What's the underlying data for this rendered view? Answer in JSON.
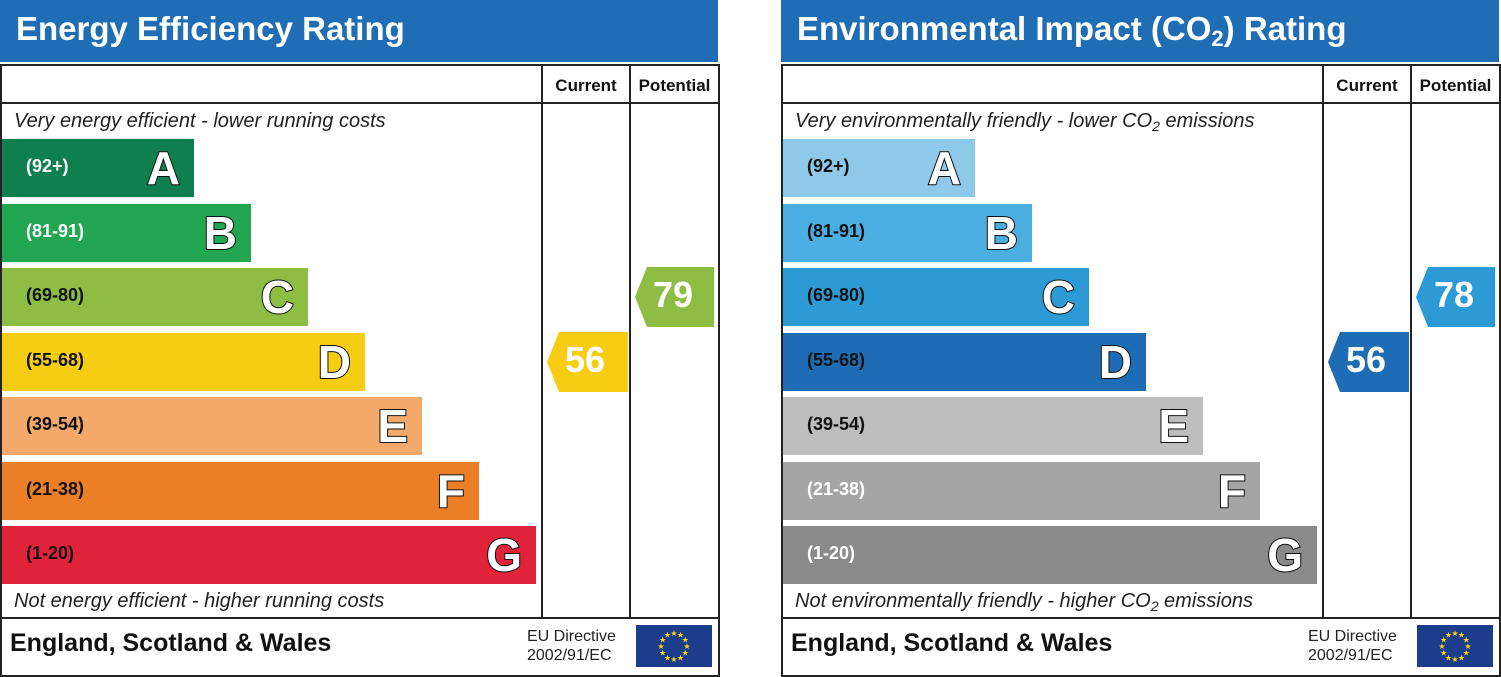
{
  "chart_data": [
    {
      "type": "bar",
      "title": "Energy Efficiency Rating",
      "columns": [
        "Current",
        "Potential"
      ],
      "top_note": "Very energy efficient - lower running costs",
      "bottom_note": "Not energy efficient - higher running costs",
      "bands": [
        {
          "letter": "A",
          "range": "(92+)",
          "color": "#0f7f4d",
          "text_color": "#ffffff"
        },
        {
          "letter": "B",
          "range": "(81-91)",
          "color": "#22a652",
          "text_color": "#ffffff"
        },
        {
          "letter": "C",
          "range": "(69-80)",
          "color": "#8dbe43",
          "text_color": "#111111"
        },
        {
          "letter": "D",
          "range": "(55-68)",
          "color": "#f6cd13",
          "text_color": "#111111"
        },
        {
          "letter": "E",
          "range": "(39-54)",
          "color": "#f3a96a",
          "text_color": "#111111"
        },
        {
          "letter": "F",
          "range": "(21-38)",
          "color": "#ec7f25",
          "text_color": "#111111"
        },
        {
          "letter": "G",
          "range": "(1-20)",
          "color": "#e0223a",
          "text_color": "#111111"
        }
      ],
      "current": {
        "value": 56,
        "band": "D",
        "color": "#f6cd13"
      },
      "potential": {
        "value": 79,
        "band": "C",
        "color": "#8dbe43"
      },
      "footer": {
        "country": "England, Scotland & Wales",
        "directive_line1": "EU Directive",
        "directive_line2": "2002/91/EC"
      }
    },
    {
      "type": "bar",
      "title_main": "Environmental Impact (CO",
      "title_sub": "2",
      "title_end": ") Rating",
      "columns": [
        "Current",
        "Potential"
      ],
      "top_note_main": "Very environmentally friendly - lower CO",
      "top_note_sub": "2",
      "top_note_end": " emissions",
      "bottom_note_main": "Not environmentally friendly - higher CO",
      "bottom_note_sub": "2",
      "bottom_note_end": " emissions",
      "bands": [
        {
          "letter": "A",
          "range": "(92+)",
          "color": "#8ec9ea",
          "text_color": "#111111"
        },
        {
          "letter": "B",
          "range": "(81-91)",
          "color": "#4aaee0",
          "text_color": "#111111"
        },
        {
          "letter": "C",
          "range": "(69-80)",
          "color": "#2b9ad5",
          "text_color": "#111111"
        },
        {
          "letter": "D",
          "range": "(55-68)",
          "color": "#1e6db4",
          "text_color": "#111111"
        },
        {
          "letter": "E",
          "range": "(39-54)",
          "color": "#bebebe",
          "text_color": "#111111"
        },
        {
          "letter": "F",
          "range": "(21-38)",
          "color": "#a5a5a5",
          "text_color": "#ffffff"
        },
        {
          "letter": "G",
          "range": "(1-20)",
          "color": "#8a8a8a",
          "text_color": "#ffffff"
        }
      ],
      "current": {
        "value": 56,
        "band": "D",
        "color": "#1e6db4"
      },
      "potential": {
        "value": 78,
        "band": "C",
        "color": "#2b9ad5"
      },
      "footer": {
        "country": "England, Scotland & Wales",
        "directive_line1": "EU Directive",
        "directive_line2": "2002/91/EC"
      }
    }
  ]
}
